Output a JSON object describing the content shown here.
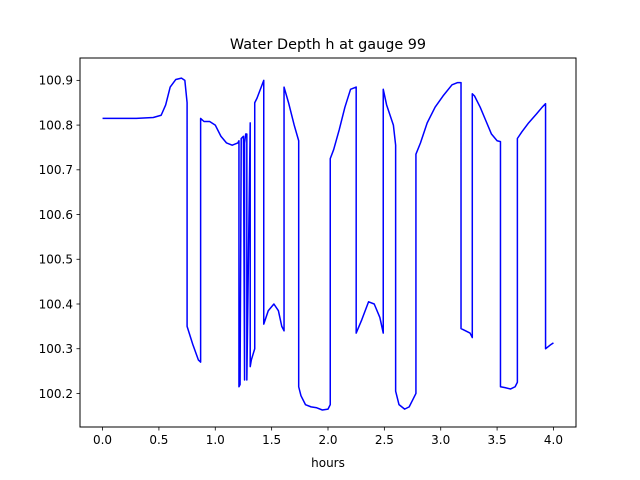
{
  "chart_data": {
    "type": "line",
    "title": "Water Depth h at gauge 99",
    "xlabel": "hours",
    "ylabel": "",
    "xlim": [
      -0.2,
      4.2
    ],
    "ylim": [
      100.125,
      100.95
    ],
    "xticks": [
      0.0,
      0.5,
      1.0,
      1.5,
      2.0,
      2.5,
      3.0,
      3.5,
      4.0
    ],
    "xtick_labels": [
      "0.0",
      "0.5",
      "1.0",
      "1.5",
      "2.0",
      "2.5",
      "3.0",
      "3.5",
      "4.0"
    ],
    "yticks": [
      100.2,
      100.3,
      100.4,
      100.5,
      100.6,
      100.7,
      100.8,
      100.9
    ],
    "ytick_labels": [
      "100.2",
      "100.3",
      "100.4",
      "100.5",
      "100.6",
      "100.7",
      "100.8",
      "100.9"
    ],
    "grid": false,
    "legend": false,
    "series": [
      {
        "color": "#0000ff",
        "x": [
          0.0,
          0.3,
          0.45,
          0.52,
          0.56,
          0.6,
          0.65,
          0.7,
          0.73,
          0.75,
          0.75,
          0.8,
          0.85,
          0.87,
          0.87,
          0.9,
          0.95,
          1.0,
          1.05,
          1.1,
          1.15,
          1.2,
          1.21,
          1.21,
          1.22,
          1.23,
          1.23,
          1.25,
          1.26,
          1.26,
          1.27,
          1.28,
          1.28,
          1.31,
          1.31,
          1.32,
          1.35,
          1.35,
          1.37,
          1.43,
          1.43,
          1.47,
          1.52,
          1.56,
          1.59,
          1.61,
          1.61,
          1.65,
          1.7,
          1.74,
          1.74,
          1.76,
          1.8,
          1.85,
          1.9,
          1.95,
          2.0,
          2.02,
          2.02,
          2.05,
          2.1,
          2.15,
          2.2,
          2.25,
          2.25,
          2.3,
          2.36,
          2.41,
          2.46,
          2.49,
          2.49,
          2.52,
          2.58,
          2.6,
          2.6,
          2.63,
          2.68,
          2.72,
          2.75,
          2.78,
          2.78,
          2.82,
          2.88,
          2.95,
          3.02,
          3.1,
          3.15,
          3.18,
          3.18,
          3.22,
          3.26,
          3.28,
          3.28,
          3.3,
          3.35,
          3.4,
          3.45,
          3.5,
          3.53,
          3.53,
          3.57,
          3.62,
          3.66,
          3.68,
          3.68,
          3.72,
          3.78,
          3.85,
          3.9,
          3.93,
          3.93,
          3.97,
          4.0
        ],
        "y": [
          100.815,
          100.815,
          100.817,
          100.822,
          100.845,
          100.885,
          100.902,
          100.905,
          100.9,
          100.85,
          100.35,
          100.31,
          100.275,
          100.27,
          100.815,
          100.808,
          100.808,
          100.8,
          100.775,
          100.76,
          100.755,
          100.76,
          100.765,
          100.215,
          100.22,
          100.76,
          100.77,
          100.775,
          100.23,
          100.76,
          100.78,
          100.78,
          100.23,
          100.805,
          100.26,
          100.275,
          100.3,
          100.85,
          100.86,
          100.9,
          100.355,
          100.385,
          100.4,
          100.385,
          100.35,
          100.34,
          100.885,
          100.85,
          100.8,
          100.765,
          100.215,
          100.195,
          100.175,
          100.17,
          100.168,
          100.163,
          100.165,
          100.175,
          100.725,
          100.745,
          100.79,
          100.84,
          100.88,
          100.885,
          100.335,
          100.365,
          100.405,
          100.4,
          100.37,
          100.335,
          100.88,
          100.845,
          100.8,
          100.755,
          100.205,
          100.175,
          100.165,
          100.17,
          100.185,
          100.2,
          100.735,
          100.76,
          100.805,
          100.84,
          100.865,
          100.89,
          100.895,
          100.895,
          100.345,
          100.34,
          100.335,
          100.325,
          100.87,
          100.865,
          100.84,
          100.81,
          100.78,
          100.765,
          100.763,
          100.215,
          100.213,
          100.21,
          100.215,
          100.225,
          100.77,
          100.785,
          100.805,
          100.825,
          100.84,
          100.848,
          100.3,
          100.308,
          100.313
        ]
      }
    ]
  }
}
